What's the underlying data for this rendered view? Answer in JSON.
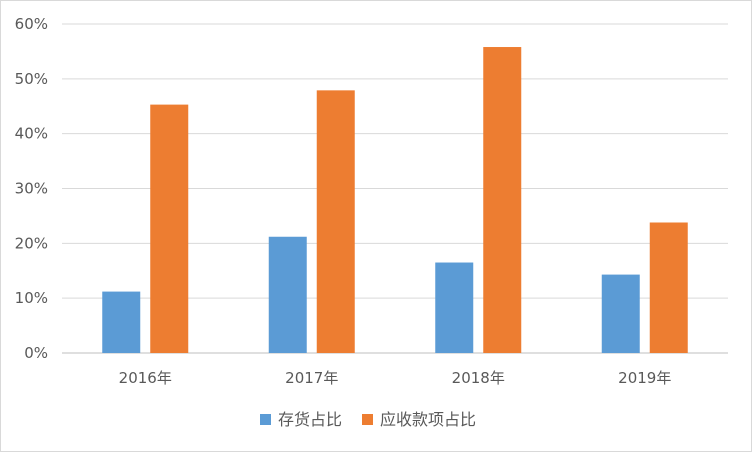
{
  "chart_data": {
    "type": "bar",
    "title": "",
    "xlabel": "",
    "ylabel": "",
    "categories": [
      "2016年",
      "2017年",
      "2018年",
      "2019年"
    ],
    "series": [
      {
        "name": "存货占比",
        "color": "#5b9bd5",
        "values": [
          11.2,
          21.2,
          16.5,
          14.3
        ]
      },
      {
        "name": "应收款项占比",
        "color": "#ed7d31",
        "values": [
          45.3,
          47.9,
          55.8,
          23.8
        ]
      }
    ],
    "yticks": [
      "0%",
      "10%",
      "20%",
      "30%",
      "40%",
      "50%",
      "60%"
    ],
    "ylim": [
      0,
      60
    ],
    "grid": true,
    "legend_position": "bottom"
  }
}
